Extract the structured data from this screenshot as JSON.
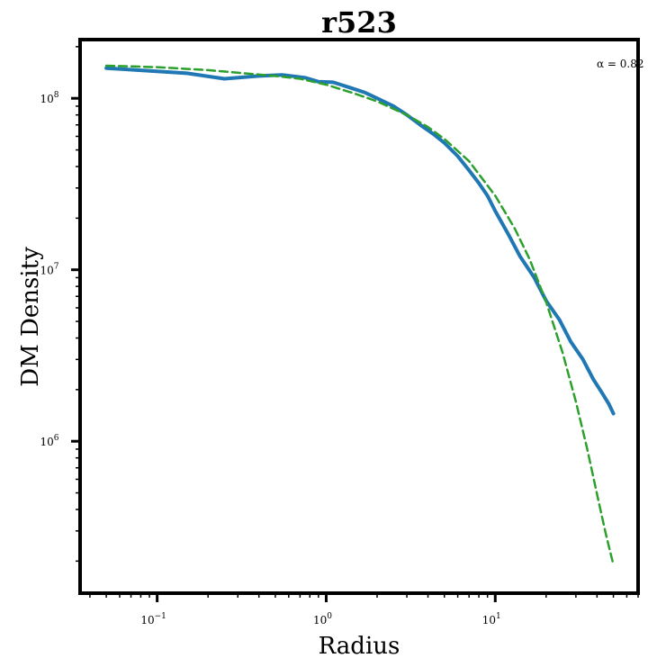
{
  "chart_data": {
    "type": "line",
    "title": "r523",
    "xlabel": "Radius",
    "ylabel": "DM Density",
    "xscale": "log",
    "yscale": "log",
    "xlim": [
      0.035,
      70
    ],
    "ylim": [
      130000,
      220000000
    ],
    "grid": false,
    "annotation": "α = 0.82",
    "x_ticks": [
      {
        "value": 0.1,
        "base": "10",
        "exp": "−1"
      },
      {
        "value": 1,
        "base": "10",
        "exp": "0"
      },
      {
        "value": 10,
        "base": "10",
        "exp": "1"
      }
    ],
    "y_ticks": [
      {
        "value": 1000000,
        "base": "10",
        "exp": "6"
      },
      {
        "value": 10000000,
        "base": "10",
        "exp": "7"
      },
      {
        "value": 100000000,
        "base": "10",
        "exp": "8"
      }
    ],
    "series": [
      {
        "color": "#1f77b4",
        "style": "solid",
        "x": [
          0.05,
          0.15,
          0.25,
          0.4,
          0.55,
          0.75,
          0.9,
          1.1,
          1.4,
          1.7,
          2.0,
          2.5,
          3.0,
          3.6,
          4.3,
          5.0,
          6.0,
          7.0,
          8.0,
          9.0,
          10.0,
          12.0,
          14.0,
          17.0,
          20.0,
          24.0,
          28.0,
          33.0,
          38.0,
          43.0,
          47.0,
          50.0
        ],
        "y": [
          150000000,
          140000000,
          130000000,
          135000000,
          137000000,
          132000000,
          125000000,
          124000000,
          115000000,
          108000000,
          100000000,
          90000000,
          80000000,
          70000000,
          62000000,
          55000000,
          46000000,
          38000000,
          32000000,
          27000000,
          22000000,
          16000000,
          12000000,
          9000000,
          6600000,
          5100000,
          3800000,
          3000000,
          2300000,
          1900000,
          1650000,
          1450000
        ]
      },
      {
        "color": "#2ca02c",
        "style": "dashed",
        "x": [
          0.05,
          0.1,
          0.2,
          0.3,
          0.5,
          0.7,
          1.0,
          1.5,
          2.0,
          3.0,
          4.0,
          5.0,
          7.0,
          10.0,
          13.0,
          16.0,
          20.0,
          25.0,
          30.0,
          35.0,
          40.0,
          45.0,
          50.0
        ],
        "y": [
          155000000,
          152000000,
          146000000,
          141000000,
          135000000,
          130000000,
          120000000,
          106000000,
          96000000,
          80000000,
          68000000,
          58000000,
          43000000,
          27000000,
          17500000,
          11500000,
          6500000,
          3300000,
          1700000,
          900000,
          490000,
          290000,
          190000
        ]
      }
    ]
  }
}
